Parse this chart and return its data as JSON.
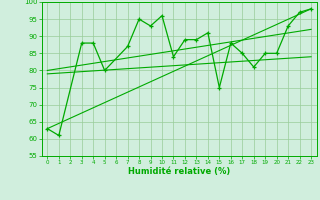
{
  "main_x": [
    0,
    1,
    3,
    4,
    5,
    7,
    8,
    9,
    10,
    11,
    12,
    13,
    14,
    15,
    16,
    17,
    18,
    19,
    20,
    21,
    22,
    23
  ],
  "main_y": [
    63,
    61,
    88,
    88,
    80,
    87,
    95,
    93,
    96,
    84,
    89,
    89,
    91,
    75,
    88,
    85,
    81,
    85,
    85,
    93,
    97,
    98
  ],
  "trend1_x": [
    0,
    23
  ],
  "trend1_y": [
    63,
    98
  ],
  "trend2_x": [
    0,
    23
  ],
  "trend2_y": [
    80,
    92
  ],
  "trend3_x": [
    0,
    23
  ],
  "trend3_y": [
    79,
    84
  ],
  "line_color": "#00aa00",
  "bg_color": "#d0eedd",
  "grid_color": "#99cc99",
  "xlabel": "Humidité relative (%)",
  "xlim": [
    -0.5,
    23.5
  ],
  "ylim": [
    55,
    100
  ],
  "yticks": [
    55,
    60,
    65,
    70,
    75,
    80,
    85,
    90,
    95,
    100
  ],
  "xticks": [
    0,
    1,
    2,
    3,
    4,
    5,
    6,
    7,
    8,
    9,
    10,
    11,
    12,
    13,
    14,
    15,
    16,
    17,
    18,
    19,
    20,
    21,
    22,
    23
  ]
}
